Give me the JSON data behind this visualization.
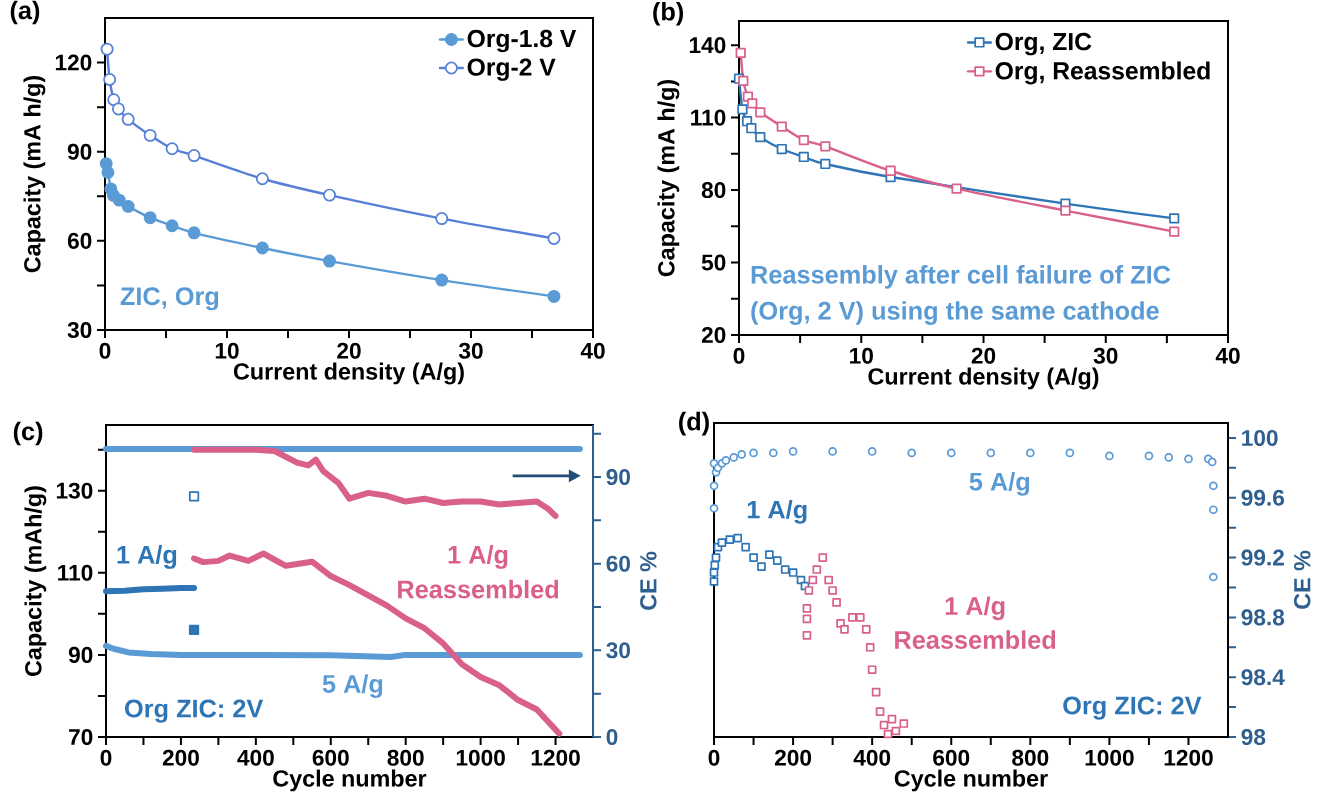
{
  "chart_data": [
    {
      "type": "line",
      "title": "(a)",
      "xlabel": "Current density (A/g)",
      "ylabel": "Capacity (mA h/g)",
      "marker": "circle",
      "legend": "top right",
      "xlim": [
        0,
        40
      ],
      "ylim": [
        30,
        135
      ],
      "xticks": [
        0,
        {
          "value": 5,
          "label": null
        },
        10,
        {
          "value": 15,
          "label": null
        },
        20,
        {
          "value": 25,
          "label": null
        },
        30,
        {
          "value": 35,
          "label": null
        },
        40
      ],
      "yticks": [
        30,
        {
          "value": 45,
          "label": null
        },
        60,
        {
          "value": 75,
          "label": null
        },
        90,
        {
          "value": 105,
          "label": null
        },
        120
      ],
      "annotations": [
        "ZIC, Org"
      ],
      "series": [
        {
          "name": "Org-1.8 V",
          "color": "#5B9BD5",
          "x": [
            0.1,
            0.24,
            0.31,
            0.48,
            0.69,
            1.17,
            1.9,
            3.7,
            5.5,
            7.3,
            12.9,
            18.4,
            27.6,
            36.8
          ],
          "values": [
            86,
            83,
            null,
            77.5,
            75.3,
            73.7,
            71.6,
            67.8,
            65.1,
            62.7,
            57.6,
            53.2,
            46.8,
            41.3
          ]
        },
        {
          "name": "Org-2 V",
          "color": "#5680D8",
          "x": [
            0.17,
            0.38,
            0.72,
            1.1,
            1.9,
            3.7,
            5.5,
            7.3,
            12.9,
            18.4,
            27.6,
            36.8
          ],
          "values": [
            124.5,
            114.3,
            107.5,
            104.4,
            100.9,
            95.5,
            91,
            88.7,
            80.9,
            75.4,
            67.5,
            60.8
          ]
        }
      ]
    },
    {
      "type": "line",
      "title": "(b)",
      "xlabel": "Current density (A/g)",
      "ylabel": "Capacity (mA h/g)",
      "marker": "square",
      "legend": "top right",
      "xlim": [
        0,
        40
      ],
      "ylim": [
        20,
        150
      ],
      "xticks": [
        0,
        {
          "value": 5,
          "label": null
        },
        10,
        {
          "value": 15,
          "label": null
        },
        20,
        {
          "value": 25,
          "label": null
        },
        30,
        {
          "value": 35,
          "label": null
        },
        40
      ],
      "yticks": [
        20,
        {
          "value": 35,
          "label": null
        },
        50,
        {
          "value": 65,
          "label": null
        },
        80,
        {
          "value": 95,
          "label": null
        },
        110,
        {
          "value": 125,
          "label": null
        },
        140
      ],
      "annotations": [
        "Reassembly after cell failure of ZIC",
        "(Org, 2 V) using the same cathode"
      ],
      "series": [
        {
          "name": "Org, ZIC",
          "color": "#2E75B6",
          "x": [
            0,
            0.28,
            0.66,
            1.01,
            1.74,
            3.5,
            5.3,
            7.06,
            12.4,
            17.8,
            26.7,
            35.6
          ],
          "values": [
            126.1,
            113.4,
            108.5,
            105.6,
            101.9,
            97,
            93.7,
            90.8,
            85.4,
            null,
            74.4,
            68.3
          ]
        },
        {
          "name": "Org, Reassembled",
          "color": "#D9608A",
          "x": [
            0.14,
            0.35,
            0.73,
            1.08,
            1.74,
            3.5,
            5.3,
            7.06,
            12.4,
            17.8,
            26.7,
            35.6
          ],
          "values": [
            136.8,
            125.2,
            118.7,
            115.9,
            112.2,
            106.3,
            100.7,
            98.1,
            88,
            80.6,
            71.5,
            62.8
          ]
        }
      ]
    },
    {
      "type": "line",
      "title": "(c)",
      "xlabel": "Cycle number",
      "ylabel": "Capacity (mAh/g)",
      "y2label": "CE %",
      "xlim": [
        0,
        1300
      ],
      "ylim": [
        70,
        146
      ],
      "y2lim": [
        0,
        108
      ],
      "xticks": [
        0,
        {
          "value": 100,
          "label": null
        },
        200,
        {
          "value": 300,
          "label": null
        },
        400,
        {
          "value": 500,
          "label": null
        },
        600,
        {
          "value": 700,
          "label": null
        },
        800,
        {
          "value": 900,
          "label": null
        },
        1000,
        {
          "value": 1100,
          "label": null
        },
        1200
      ],
      "yticks": [
        70,
        {
          "value": 80,
          "label": null
        },
        90,
        {
          "value": 100,
          "label": null
        },
        110,
        {
          "value": 120,
          "label": null
        },
        130,
        {
          "value": 140,
          "label": null
        }
      ],
      "y2ticks": [
        0,
        {
          "value": 15,
          "label": null
        },
        30,
        {
          "value": 45,
          "label": null
        },
        60,
        {
          "value": 75,
          "label": null
        },
        90,
        {
          "value": 105,
          "label": null
        }
      ],
      "annotations": [
        "1 A/g",
        "1 A/g",
        "Reassembled",
        "5 A/g",
        "Org ZIC: 2V"
      ],
      "series": [
        {
          "color": "#5B9BD5",
          "axis": "y2",
          "x": [
            0,
            200,
            400,
            600,
            800,
            1000,
            1265
          ],
          "values": [
            99.7,
            99.7,
            99.7,
            99.7,
            99.7,
            99.7,
            99.7
          ]
        },
        {
          "color": "#2E75B6",
          "x": [
            0,
            50,
            100,
            150,
            200,
            235
          ],
          "values": [
            105.5,
            105.6,
            106,
            106.1,
            106.3,
            106.3
          ]
        },
        {
          "color": "#2E75B6",
          "type": "scatter",
          "marker": "square",
          "x": [
            235
          ],
          "values": [
            96.1
          ]
        },
        {
          "color": "#2E75B6",
          "type": "scatter",
          "marker": "square",
          "axis": "y2",
          "x": [
            235
          ],
          "values": [
            83.3
          ]
        },
        {
          "color": "#5B9BD5",
          "x": [
            0,
            20,
            60,
            120,
            200,
            400,
            600,
            760,
            800,
            1000,
            1265
          ],
          "values": [
            92.2,
            91.5,
            90.6,
            90.2,
            90,
            90,
            89.9,
            89.5,
            90,
            90,
            90
          ]
        },
        {
          "color": "#D9608A",
          "x": [
            235,
            260,
            300,
            330,
            380,
            420,
            480,
            550,
            600,
            650,
            700,
            750,
            800,
            850,
            900,
            950,
            1000,
            1050,
            1100,
            1150,
            1200,
            1210
          ],
          "values": [
            113.5,
            112.6,
            112.9,
            114.2,
            112.9,
            114.7,
            111.7,
            112.7,
            109.2,
            107,
            104.5,
            102,
            98.9,
            96.5,
            92.8,
            87.7,
            84.6,
            82.6,
            79,
            76.7,
            71.8,
            70.8
          ]
        },
        {
          "color": "#D9608A",
          "axis": "y2",
          "x": [
            235,
            400,
            450,
            480,
            510,
            540,
            560,
            580,
            620,
            650,
            700,
            750,
            800,
            850,
            900,
            950,
            1000,
            1050,
            1100,
            1150,
            1180,
            1200
          ],
          "values": [
            99.4,
            99.4,
            99,
            97,
            95,
            94,
            96,
            92,
            88,
            82.5,
            84.5,
            83.5,
            81.5,
            82.5,
            81,
            81.5,
            81.5,
            80.5,
            81,
            81.5,
            79,
            76.5
          ]
        }
      ]
    },
    {
      "type": "scatter",
      "title": "(d)",
      "xlabel": "Cycle number",
      "y2label": "CE %",
      "xlim": [
        0,
        1300
      ],
      "y2lim": [
        98,
        100.1
      ],
      "xticks": [
        0,
        {
          "value": 100,
          "label": null
        },
        200,
        {
          "value": 300,
          "label": null
        },
        400,
        {
          "value": 500,
          "label": null
        },
        600,
        {
          "value": 700,
          "label": null
        },
        800,
        {
          "value": 900,
          "label": null
        },
        1000,
        {
          "value": 1100,
          "label": null
        },
        1200
      ],
      "y2ticks": [
        98,
        {
          "value": 98.2,
          "label": null
        },
        98.4,
        {
          "value": 98.6,
          "label": null
        },
        98.8,
        {
          "value": 99,
          "label": null
        },
        99.2,
        {
          "value": 99.4,
          "label": null
        },
        99.6,
        {
          "value": 99.8,
          "label": null
        },
        100
      ],
      "annotations": [
        "5 A/g",
        "1 A/g",
        "1 A/g",
        "Reassembled",
        "Org ZIC: 2V"
      ],
      "series": [
        {
          "color": "#5B9BD5",
          "marker": "circle",
          "axis": "y2",
          "x": [
            0,
            0,
            0,
            5,
            10,
            20,
            30,
            50,
            70,
            100,
            150,
            200,
            300,
            400,
            500,
            600,
            700,
            800,
            900,
            1000,
            1100,
            1150,
            1200,
            1250,
            1260,
            1263,
            1263,
            1263
          ],
          "values": [
            99.53,
            99.68,
            99.83,
            99.77,
            99.8,
            99.83,
            99.85,
            99.87,
            99.89,
            99.9,
            99.9,
            99.91,
            99.91,
            99.91,
            99.9,
            99.9,
            99.9,
            99.9,
            99.9,
            99.88,
            99.88,
            99.87,
            99.86,
            99.86,
            99.84,
            99.68,
            99.52,
            99.07
          ]
        },
        {
          "color": "#2E75B6",
          "marker": "square",
          "axis": "y2",
          "x": [
            0,
            0,
            2,
            5,
            10,
            20,
            40,
            60,
            80,
            100,
            120,
            140,
            160,
            180,
            200,
            220,
            230
          ],
          "values": [
            99.04,
            99.1,
            99.15,
            99.2,
            99.27,
            99.3,
            99.32,
            99.33,
            99.27,
            99.2,
            99.14,
            99.22,
            99.18,
            99.12,
            99.1,
            99.05,
            99.01
          ]
        },
        {
          "color": "#D9608A",
          "marker": "square",
          "axis": "y2",
          "x": [
            235,
            235,
            235,
            240,
            250,
            260,
            275,
            290,
            300,
            310,
            320,
            330,
            350,
            370,
            385,
            395,
            400,
            410,
            420,
            430,
            440,
            450,
            460,
            470,
            480
          ],
          "values": [
            98.68,
            98.79,
            98.86,
            98.98,
            99.05,
            99.12,
            99.2,
            99.05,
            98.98,
            98.9,
            98.76,
            98.72,
            98.8,
            98.8,
            98.72,
            98.6,
            98.45,
            98.3,
            98.17,
            98.08,
            98.02,
            98.12,
            98.04,
            null,
            98.09
          ]
        }
      ]
    }
  ]
}
